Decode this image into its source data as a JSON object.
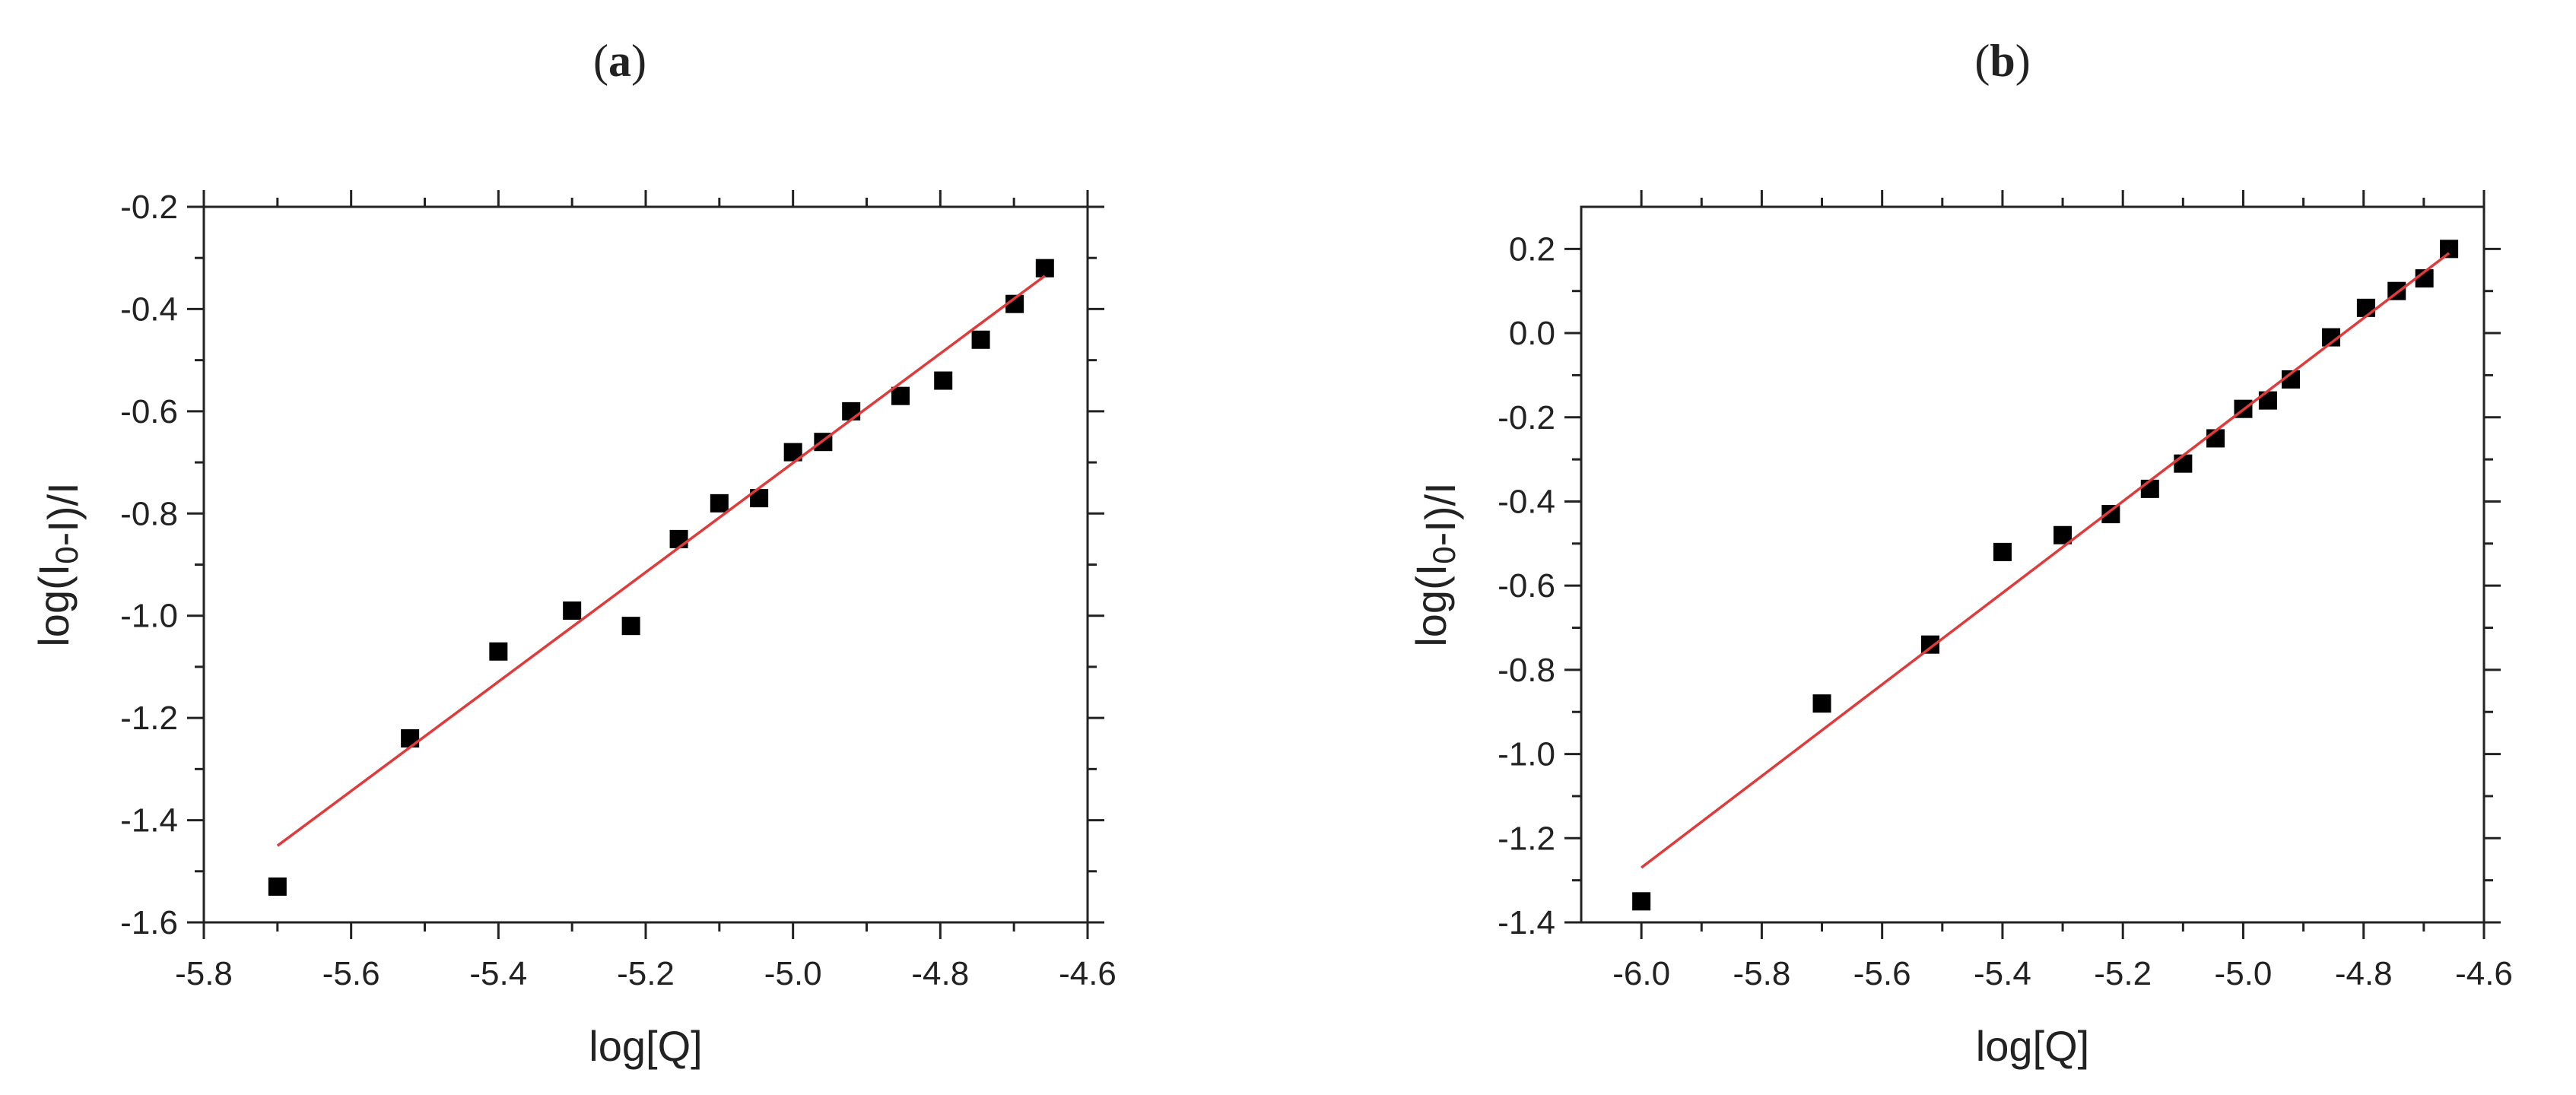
{
  "chart_data": [
    {
      "type": "scatter",
      "panel_label": "(a)",
      "title": "",
      "xlabel": "log[Q]",
      "ylabel": "log(I0-I)/I",
      "xlim": [
        -5.8,
        -4.6
      ],
      "ylim": [
        -1.6,
        -0.2
      ],
      "x_ticks": [
        "-5.8",
        "-5.6",
        "-5.4",
        "-5.2",
        "-5.0",
        "-4.8",
        "-4.6"
      ],
      "y_ticks": [
        "-1.6",
        "-1.4",
        "-1.2",
        "-1.0",
        "-0.8",
        "-0.6",
        "-0.4",
        "-0.2"
      ],
      "grid": false,
      "series": [
        {
          "kind": "points",
          "marker": "square",
          "color": "#000000",
          "x": [
            -5.7,
            -5.52,
            -5.4,
            -5.3,
            -5.22,
            -5.155,
            -5.1,
            -5.046,
            -5.0,
            -4.959,
            -4.921,
            -4.854,
            -4.796,
            -4.745,
            -4.699,
            -4.658
          ],
          "y": [
            -1.53,
            -1.24,
            -1.07,
            -0.99,
            -1.02,
            -0.85,
            -0.78,
            -0.77,
            -0.68,
            -0.66,
            -0.6,
            -0.57,
            -0.54,
            -0.46,
            -0.39,
            -0.32
          ]
        },
        {
          "kind": "fit-line",
          "color": "#e03a3a",
          "x": [
            -5.7,
            -4.658
          ],
          "y": [
            -1.45,
            -0.335
          ]
        }
      ]
    },
    {
      "type": "scatter",
      "panel_label": "(b)",
      "title": "",
      "xlabel": "log[Q]",
      "ylabel": "log(I0-I)/I",
      "xlim": [
        -6.1,
        -4.6
      ],
      "ylim": [
        -1.4,
        0.3
      ],
      "x_ticks": [
        "-6.0",
        "-5.8",
        "-5.6",
        "-5.4",
        "-5.2",
        "-5.0",
        "-4.8",
        "-4.6"
      ],
      "y_ticks": [
        "-1.4",
        "-1.2",
        "-1.0",
        "-0.8",
        "-0.6",
        "-0.4",
        "-0.2",
        "0.0",
        "0.2"
      ],
      "grid": false,
      "series": [
        {
          "kind": "points",
          "marker": "square",
          "color": "#000000",
          "x": [
            -6.0,
            -5.7,
            -5.52,
            -5.4,
            -5.3,
            -5.22,
            -5.155,
            -5.1,
            -5.046,
            -5.0,
            -4.959,
            -4.921,
            -4.854,
            -4.796,
            -4.745,
            -4.699,
            -4.658
          ],
          "y": [
            -1.35,
            -0.88,
            -0.74,
            -0.52,
            -0.48,
            -0.43,
            -0.37,
            -0.31,
            -0.25,
            -0.18,
            -0.16,
            -0.11,
            -0.01,
            0.06,
            0.1,
            0.13,
            0.2
          ]
        },
        {
          "kind": "fit-line",
          "color": "#e03a3a",
          "x": [
            -6.0,
            -4.658
          ],
          "y": [
            -1.27,
            0.19
          ]
        }
      ]
    }
  ]
}
